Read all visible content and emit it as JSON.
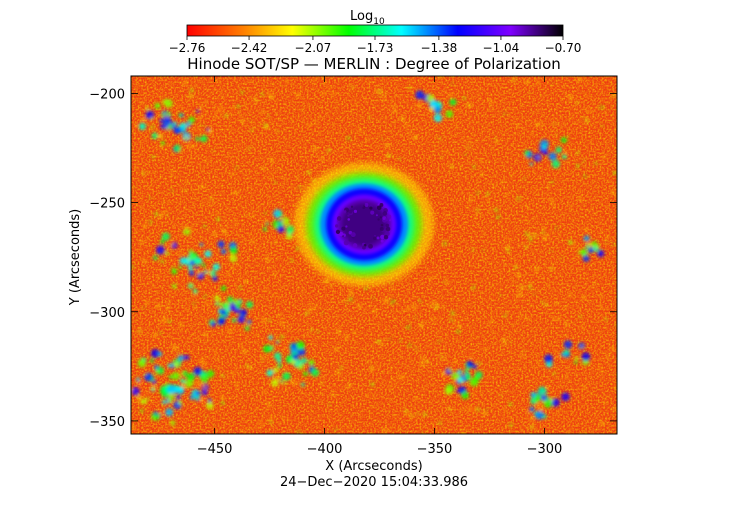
{
  "chart_data": {
    "type": "heatmap",
    "title": "Hinode SOT/SP — MERLIN : Degree of Polarization",
    "xlabel": "X (Arcseconds)",
    "ylabel": "Y (Arcseconds)",
    "xlim": [
      -488,
      -267
    ],
    "ylim": [
      -356,
      -192
    ],
    "xticks": [
      -450,
      -400,
      -350,
      -300
    ],
    "yticks": [
      -200,
      -250,
      -300,
      -350
    ],
    "xtick_labels": [
      "−450",
      "−400",
      "−350",
      "−300"
    ],
    "ytick_labels": [
      "−200",
      "−250",
      "−300",
      "−350"
    ],
    "colorbar": {
      "label_base": "Log",
      "label_sub": "10",
      "range": [
        -2.76,
        -0.7
      ],
      "ticks": [
        -2.76,
        -2.42,
        -2.07,
        -1.73,
        -1.38,
        -1.04,
        -0.7
      ],
      "tick_labels": [
        "−2.76",
        "−2.42",
        "−2.07",
        "−1.73",
        "−1.38",
        "−1.04",
        "−0.70"
      ],
      "colormap": [
        "#ff0000",
        "#ff7f00",
        "#ffff00",
        "#00ff00",
        "#00ffff",
        "#0000ff",
        "#7f00ff",
        "#000000"
      ]
    },
    "features": {
      "sunspot_center": [
        -382,
        -260
      ],
      "umbra_value": -0.85,
      "penumbra_value": -1.3,
      "background_value": -2.55
    },
    "timestamp": "24−Dec−2020 15:04:33.986"
  }
}
